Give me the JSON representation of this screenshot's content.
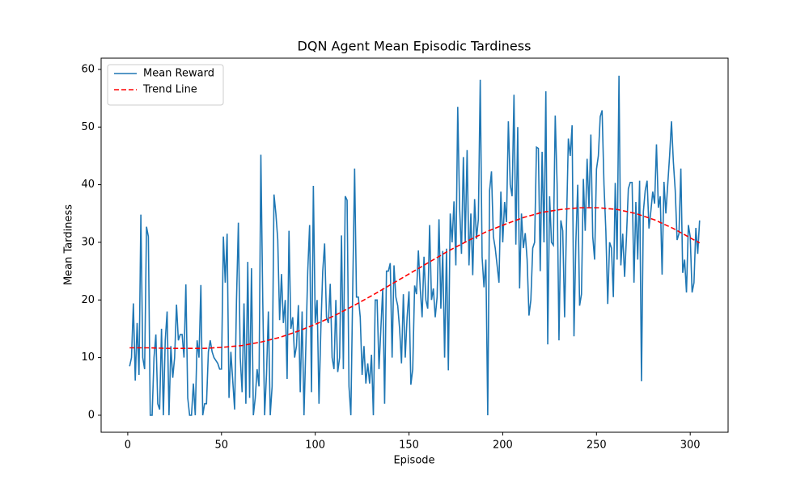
{
  "chart_data": {
    "type": "line",
    "title": "DQN Agent Mean Episodic Tardiness",
    "x_label": "Episode",
    "y_label": "Mean Tardiness",
    "xlim": [
      -14.2,
      320.2
    ],
    "ylim": [
      -2.95,
      61.95
    ],
    "xticks": [
      0,
      50,
      100,
      150,
      200,
      250,
      300
    ],
    "yticks": [
      0,
      10,
      20,
      30,
      40,
      50,
      60
    ],
    "legend": "upper left",
    "x": [
      1,
      2,
      3,
      4,
      5,
      6,
      7,
      8,
      9,
      10,
      11,
      12,
      13,
      14,
      15,
      16,
      17,
      18,
      19,
      20,
      21,
      22,
      23,
      24,
      25,
      26,
      27,
      28,
      29,
      30,
      31,
      32,
      33,
      34,
      35,
      36,
      37,
      38,
      39,
      40,
      41,
      42,
      43,
      44,
      45,
      46,
      47,
      48,
      49,
      50,
      51,
      52,
      53,
      54,
      55,
      56,
      57,
      58,
      59,
      60,
      61,
      62,
      63,
      64,
      65,
      66,
      67,
      68,
      69,
      70,
      71,
      72,
      73,
      74,
      75,
      76,
      77,
      78,
      79,
      80,
      81,
      82,
      83,
      84,
      85,
      86,
      87,
      88,
      89,
      90,
      91,
      92,
      93,
      94,
      95,
      96,
      97,
      98,
      99,
      100,
      101,
      102,
      103,
      104,
      105,
      106,
      107,
      108,
      109,
      110,
      111,
      112,
      113,
      114,
      115,
      116,
      117,
      118,
      119,
      120,
      121,
      122,
      123,
      124,
      125,
      126,
      127,
      128,
      129,
      130,
      131,
      132,
      133,
      134,
      135,
      136,
      137,
      138,
      139,
      140,
      141,
      142,
      143,
      144,
      145,
      146,
      147,
      148,
      149,
      150,
      151,
      152,
      153,
      154,
      155,
      156,
      157,
      158,
      159,
      160,
      161,
      162,
      163,
      164,
      165,
      166,
      167,
      168,
      169,
      170,
      171,
      172,
      173,
      174,
      175,
      176,
      177,
      178,
      179,
      180,
      181,
      182,
      183,
      184,
      185,
      186,
      187,
      188,
      189,
      190,
      191,
      192,
      193,
      194,
      195,
      196,
      197,
      198,
      199,
      200,
      201,
      202,
      203,
      204,
      205,
      206,
      207,
      208,
      209,
      210,
      211,
      212,
      213,
      214,
      215,
      216,
      217,
      218,
      219,
      220,
      221,
      222,
      223,
      224,
      225,
      226,
      227,
      228,
      229,
      230,
      231,
      232,
      233,
      234,
      235,
      236,
      237,
      238,
      239,
      240,
      241,
      242,
      243,
      244,
      245,
      246,
      247,
      248,
      249,
      250,
      251,
      252,
      253,
      254,
      255,
      256,
      257,
      258,
      259,
      260,
      261,
      262,
      263,
      264,
      265,
      266,
      267,
      268,
      269,
      270,
      271,
      272,
      273,
      274,
      275,
      276,
      277,
      278,
      279,
      280,
      281,
      282,
      283,
      284,
      285,
      286,
      287,
      288,
      289,
      290,
      291,
      292,
      293,
      294,
      295,
      296,
      297,
      298,
      299,
      300,
      301,
      302,
      303,
      304,
      305
    ],
    "series": [
      {
        "name": "Mean Reward",
        "color": "#1f77b4",
        "dash": false,
        "values": [
          8.5,
          10,
          19.4,
          6,
          16,
          7,
          34.8,
          10,
          8,
          32.7,
          31,
          0,
          0,
          10,
          14,
          2,
          1,
          15,
          0,
          13,
          18,
          0,
          12,
          6.5,
          10,
          19.2,
          13,
          14,
          14,
          10,
          22.7,
          3,
          0,
          0,
          5.5,
          0,
          13,
          10,
          22.6,
          0,
          2,
          2,
          11,
          13,
          11,
          10,
          9.5,
          9,
          8,
          8,
          31,
          23,
          31.5,
          3,
          11,
          6,
          1,
          20,
          33.4,
          10,
          4,
          19.4,
          2,
          26.6,
          3,
          25.5,
          0,
          3,
          8,
          5,
          45.2,
          20,
          0,
          7,
          18,
          0,
          5,
          38.3,
          35,
          30.5,
          16.5,
          24.5,
          16,
          20,
          6.3,
          32,
          15,
          17,
          10,
          12,
          19.1,
          4,
          18,
          0,
          12,
          25,
          33,
          4,
          39.8,
          16,
          20,
          2,
          15,
          25,
          29.8,
          17,
          16,
          22.8,
          10,
          8,
          20,
          7.5,
          10,
          31.2,
          8,
          38,
          37.3,
          5,
          0,
          22,
          42.8,
          20.5,
          20.5,
          17,
          7,
          12,
          5.5,
          9,
          5.5,
          10.5,
          0,
          20,
          20,
          8,
          15,
          22,
          2,
          25,
          25,
          26.4,
          10,
          26,
          20.5,
          19,
          15,
          9,
          21,
          10,
          17,
          21.5,
          5.3,
          8,
          22.5,
          21,
          28.6,
          22,
          17,
          27.5,
          20,
          18.5,
          33,
          20,
          22,
          17,
          20.5,
          34,
          18.5,
          28.5,
          10,
          28.9,
          7.8,
          35,
          30,
          37.1,
          26,
          53.5,
          36,
          28,
          44.8,
          30,
          46,
          26,
          35,
          24.3,
          37.5,
          30.6,
          34,
          58.2,
          27.4,
          22.2,
          27,
          0,
          39,
          42.3,
          31,
          29,
          26,
          23,
          38.8,
          30,
          37,
          33.5,
          51,
          40,
          38,
          55.6,
          29.6,
          50,
          22,
          35,
          29,
          31.6,
          27,
          17.3,
          20,
          29,
          30,
          46.5,
          46.3,
          25,
          45.7,
          30,
          56.2,
          12.3,
          38,
          30,
          29.5,
          52,
          40,
          13,
          33.8,
          32,
          17,
          33,
          48,
          45,
          50.3,
          13.7,
          30,
          40,
          19,
          21,
          41,
          32,
          44.5,
          36,
          48.7,
          31,
          27,
          42.7,
          45,
          51.8,
          52.9,
          40,
          32,
          19.3,
          30,
          29,
          20.5,
          40.3,
          27,
          58.9,
          26,
          31.5,
          24,
          31,
          39.3,
          40.4,
          40.4,
          23,
          37,
          27,
          40.7,
          5.9,
          35.3,
          39,
          40.7,
          32.4,
          35.4,
          38.8,
          36.7,
          47,
          36,
          38,
          24.4,
          40.5,
          35,
          40,
          45,
          51,
          44,
          39,
          30.4,
          31.5,
          42.8,
          24.7,
          27,
          21.3,
          33,
          31,
          21.3,
          23,
          32.5,
          28,
          33.8
        ]
      },
      {
        "name": "Trend Line",
        "color": "#ff0000",
        "dash": true,
        "x": [
          1,
          11,
          21,
          31,
          41,
          51,
          61,
          71,
          81,
          91,
          101,
          111,
          121,
          131,
          141,
          151,
          161,
          171,
          181,
          191,
          201,
          211,
          221,
          231,
          241,
          251,
          261,
          271,
          281,
          291,
          301,
          305
        ],
        "values": [
          11.7,
          11.7,
          11.6,
          11.6,
          11.6,
          11.8,
          12.1,
          12.7,
          13.5,
          14.6,
          15.9,
          17.4,
          19.1,
          20.9,
          22.8,
          24.7,
          26.6,
          28.5,
          30.2,
          31.8,
          33.1,
          34.3,
          35.2,
          35.7,
          36.0,
          36.0,
          35.7,
          35.0,
          33.9,
          32.4,
          30.6,
          29.9
        ]
      }
    ]
  }
}
